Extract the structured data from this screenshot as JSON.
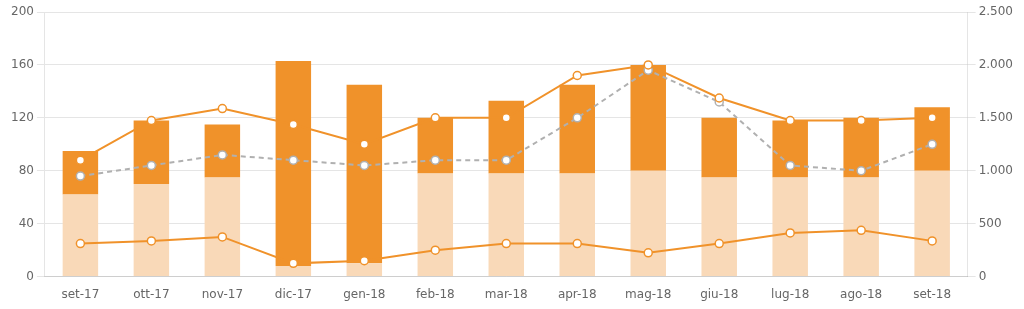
{
  "chart_data": {
    "type": "bar",
    "categories": [
      "set-17",
      "ott-17",
      "nov-17",
      "dic-17",
      "gen-18",
      "feb-18",
      "mar-18",
      "apr-18",
      "mag-18",
      "giu-18",
      "lug-18",
      "ago-18",
      "set-18"
    ],
    "stacked": true,
    "grid": true,
    "series": [
      {
        "type": "bar",
        "color": "#f9d9b8",
        "values": [
          62,
          70,
          75,
          8,
          10,
          78,
          78,
          78,
          80,
          75,
          75,
          75,
          80
        ]
      },
      {
        "type": "bar",
        "color": "#f0922a",
        "values": [
          33,
          48,
          40,
          155,
          135,
          42,
          55,
          67,
          80,
          45,
          43,
          45,
          48
        ]
      },
      {
        "type": "line",
        "color": "#f0922a",
        "marker": "circle",
        "line_style": "solid",
        "values": [
          88,
          118,
          127,
          115,
          100,
          120,
          120,
          152,
          160,
          135,
          118,
          118,
          120
        ]
      },
      {
        "type": "line",
        "color": "#f0922a",
        "marker": "circle",
        "line_style": "solid",
        "values": [
          25,
          27,
          30,
          10,
          12,
          20,
          25,
          25,
          18,
          25,
          33,
          35,
          27
        ]
      },
      {
        "type": "line",
        "color": "#b0b0b0",
        "marker": "circle",
        "line_style": "dashed",
        "axis": "y2",
        "values": [
          950,
          1050,
          1150,
          1100,
          1050,
          1100,
          1100,
          1500,
          1950,
          1650,
          1050,
          1000,
          1250
        ]
      }
    ],
    "ylim": [
      0,
      200
    ],
    "yticks": [
      0,
      40,
      80,
      120,
      160,
      200
    ],
    "y2lim": [
      0,
      2500
    ],
    "y2ticks": [
      0,
      500,
      {
        "value": 1000,
        "label": "1.000"
      },
      {
        "value": 1500,
        "label": "1.500"
      },
      {
        "value": 2000,
        "label": "2.000"
      },
      {
        "value": 2500,
        "label": "2.500"
      }
    ]
  }
}
